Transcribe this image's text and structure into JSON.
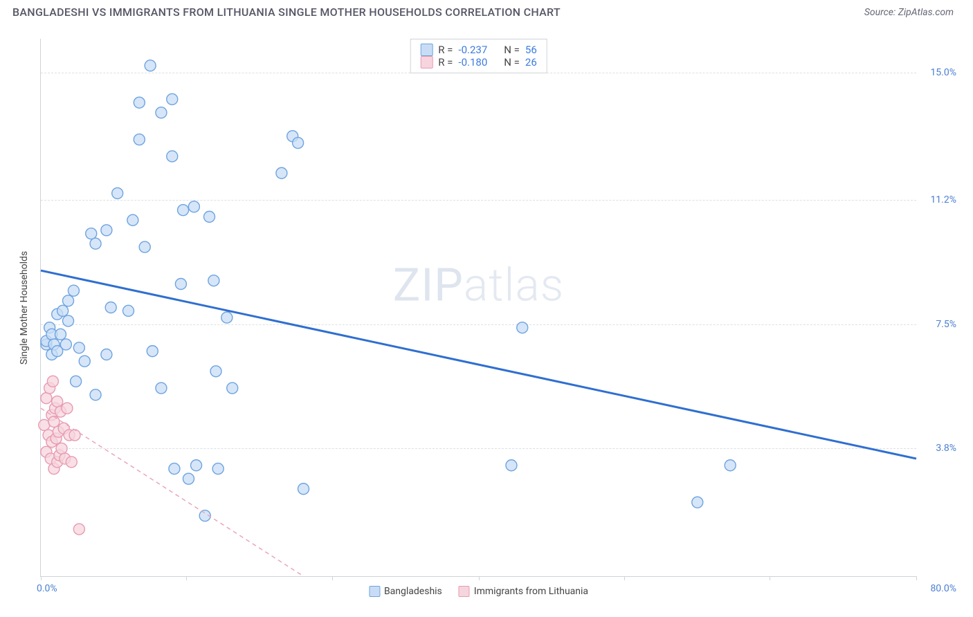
{
  "header": {
    "title": "BANGLADESHI VS IMMIGRANTS FROM LITHUANIA SINGLE MOTHER HOUSEHOLDS CORRELATION CHART",
    "source_label": "Source: ZipAtlas.com"
  },
  "watermark": {
    "text_l": "ZIP",
    "text_r": "atlas"
  },
  "chart": {
    "type": "scatter",
    "ylabel": "Single Mother Households",
    "xlim": [
      0,
      80
    ],
    "ylim": [
      0,
      16
    ],
    "x_min_label": "0.0%",
    "x_max_label": "80.0%",
    "y_ticks": [
      {
        "v": 3.8,
        "label": "3.8%"
      },
      {
        "v": 7.5,
        "label": "7.5%"
      },
      {
        "v": 11.2,
        "label": "11.2%"
      },
      {
        "v": 15.0,
        "label": "15.0%"
      }
    ],
    "x_tick_positions": [
      0,
      13.3,
      26.6,
      40,
      53.3,
      66.6,
      80
    ],
    "background_color": "#ffffff",
    "grid_color": "#dcdfe4",
    "axis_color": "#cfd3d8",
    "marker_radius": 8,
    "marker_stroke_width": 1.4,
    "series": [
      {
        "name": "Bangladeshis",
        "fill": "#c8ddf5",
        "stroke": "#6ea3e0",
        "trend_color": "#2f6fd0",
        "trend_width": 3,
        "trend_dash": "none",
        "R_label": "R =",
        "R": "-0.237",
        "N_label": "N =",
        "N": "56",
        "trend": {
          "x1": 0,
          "y1": 9.1,
          "x2": 80,
          "y2": 3.5
        },
        "points": [
          [
            0.5,
            6.9
          ],
          [
            0.5,
            7.0
          ],
          [
            0.8,
            7.4
          ],
          [
            1,
            6.6
          ],
          [
            1,
            7.2
          ],
          [
            1.2,
            6.9
          ],
          [
            1.5,
            7.8
          ],
          [
            1.5,
            6.7
          ],
          [
            1.8,
            7.2
          ],
          [
            2,
            7.9
          ],
          [
            2.3,
            6.9
          ],
          [
            2.5,
            7.6
          ],
          [
            2.5,
            8.2
          ],
          [
            3,
            8.5
          ],
          [
            3.2,
            5.8
          ],
          [
            3.5,
            6.8
          ],
          [
            4,
            6.4
          ],
          [
            4.6,
            10.2
          ],
          [
            5,
            9.9
          ],
          [
            5,
            5.4
          ],
          [
            6,
            6.6
          ],
          [
            6,
            10.3
          ],
          [
            6.4,
            8.0
          ],
          [
            7,
            11.4
          ],
          [
            8,
            7.9
          ],
          [
            8.4,
            10.6
          ],
          [
            9,
            14.1
          ],
          [
            9,
            13.0
          ],
          [
            9.5,
            9.8
          ],
          [
            10,
            15.2
          ],
          [
            10.2,
            6.7
          ],
          [
            11,
            13.8
          ],
          [
            11,
            5.6
          ],
          [
            12,
            12.5
          ],
          [
            12,
            14.2
          ],
          [
            12.8,
            8.7
          ],
          [
            12.2,
            3.2
          ],
          [
            13,
            10.9
          ],
          [
            13.5,
            2.9
          ],
          [
            14,
            11.0
          ],
          [
            14.2,
            3.3
          ],
          [
            15,
            1.8
          ],
          [
            15.4,
            10.7
          ],
          [
            15.8,
            8.8
          ],
          [
            16,
            6.1
          ],
          [
            16.2,
            3.2
          ],
          [
            17,
            7.7
          ],
          [
            17.5,
            5.6
          ],
          [
            22,
            12.0
          ],
          [
            23,
            13.1
          ],
          [
            23.5,
            12.9
          ],
          [
            24,
            2.6
          ],
          [
            43,
            3.3
          ],
          [
            44,
            7.4
          ],
          [
            60,
            2.2
          ],
          [
            63,
            3.3
          ]
        ]
      },
      {
        "name": "Immigrants from Lithuania",
        "fill": "#f6d5de",
        "stroke": "#e89ab1",
        "trend_color": "#e9a6b9",
        "trend_width": 1.5,
        "trend_dash": "6 5",
        "R_label": "R =",
        "R": "-0.180",
        "N_label": "N =",
        "N": "26",
        "trend": {
          "x1": 0,
          "y1": 5.0,
          "x2": 24,
          "y2": 0
        },
        "points": [
          [
            0.3,
            4.5
          ],
          [
            0.5,
            5.3
          ],
          [
            0.5,
            3.7
          ],
          [
            0.7,
            4.2
          ],
          [
            0.8,
            5.6
          ],
          [
            0.9,
            3.5
          ],
          [
            1.0,
            4.8
          ],
          [
            1.0,
            4.0
          ],
          [
            1.1,
            5.8
          ],
          [
            1.2,
            3.2
          ],
          [
            1.2,
            4.6
          ],
          [
            1.3,
            5.0
          ],
          [
            1.4,
            4.1
          ],
          [
            1.5,
            3.4
          ],
          [
            1.5,
            5.2
          ],
          [
            1.6,
            4.3
          ],
          [
            1.7,
            3.6
          ],
          [
            1.8,
            4.9
          ],
          [
            1.9,
            3.8
          ],
          [
            2.1,
            4.4
          ],
          [
            2.2,
            3.5
          ],
          [
            2.4,
            5.0
          ],
          [
            2.6,
            4.2
          ],
          [
            2.8,
            3.4
          ],
          [
            3.1,
            4.2
          ],
          [
            3.5,
            1.4
          ]
        ]
      }
    ]
  }
}
